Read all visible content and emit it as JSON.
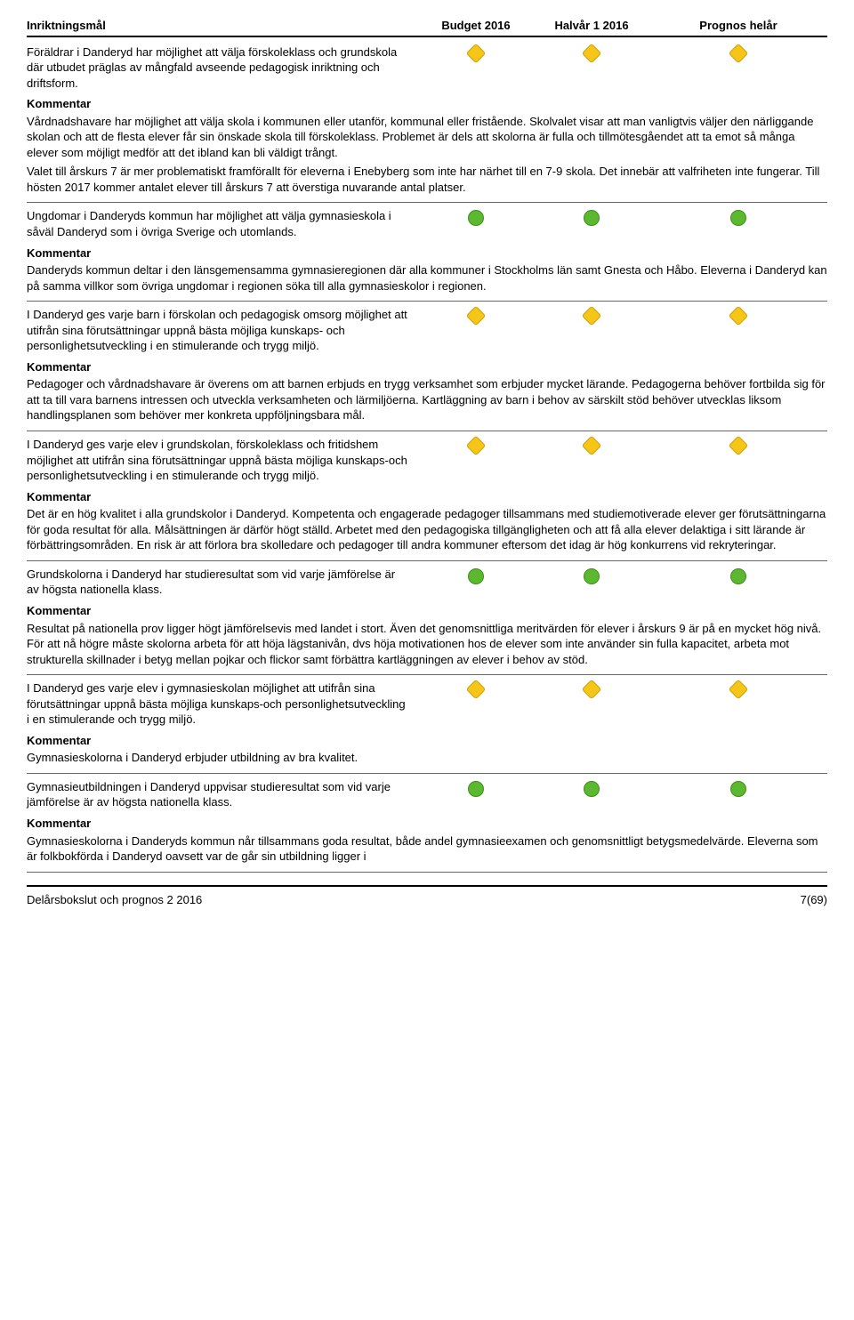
{
  "header": {
    "goal": "Inriktningsmål",
    "budget": "Budget 2016",
    "half": "Halvår 1 2016",
    "prognosis": "Prognos helår"
  },
  "status_colors": {
    "yellow": "#f5c518",
    "green": "#5cb82f"
  },
  "comment_label": "Kommentar",
  "sections": [
    {
      "goal": "Föräldrar i Danderyd har möjlighet att välja förskoleklass och grundskola där utbudet präglas av mångfald avseende pedagogisk inriktning och driftsform.",
      "status": "yellow",
      "comment": [
        "Vårdnadshavare har möjlighet att välja skola i kommunen eller utanför, kommunal eller fristående. Skolvalet visar att man vanligtvis väljer den närliggande skolan och att de flesta elever får sin önskade skola till förskoleklass. Problemet är dels att skolorna är fulla och tillmötesgåendet att ta emot så många elever som möjligt medför att det ibland kan bli väldigt trångt.",
        "Valet till årskurs 7 är mer problematiskt framförallt för eleverna i Enebyberg som inte har närhet till en 7-9 skola. Det innebär att valfriheten inte fungerar. Till hösten 2017 kommer antalet elever till årskurs 7 att överstiga nuvarande antal platser."
      ]
    },
    {
      "goal": "Ungdomar i Danderyds kommun har möjlighet att välja gymnasieskola i såväl Danderyd som i övriga Sverige och utomlands.",
      "status": "green",
      "comment": [
        "Danderyds kommun deltar i den länsgemensamma gymnasieregionen där alla kommuner i Stockholms län samt Gnesta och Håbo. Eleverna i Danderyd kan på samma villkor som övriga ungdomar i regionen söka till alla gymnasieskolor i regionen."
      ]
    },
    {
      "goal": "I Danderyd ges varje barn i förskolan och pedagogisk omsorg möjlighet att utifrån sina förutsättningar uppnå bästa möjliga kunskaps- och personlighetsutveckling i en stimulerande och trygg miljö.",
      "status": "yellow",
      "comment": [
        "Pedagoger och vårdnadshavare är överens om att barnen erbjuds en trygg verksamhet som erbjuder mycket lärande. Pedagogerna behöver fortbilda sig för att ta till vara barnens intressen och utveckla verksamheten och lärmiljöerna. Kartläggning av barn i behov av särskilt stöd behöver utvecklas liksom handlingsplanen som behöver mer konkreta uppföljningsbara mål."
      ]
    },
    {
      "goal": "I Danderyd ges varje elev i grundskolan, förskoleklass och fritidshem möjlighet att utifrån sina förutsättningar uppnå bästa möjliga kunskaps-och personlighetsutveckling i en stimulerande och trygg miljö.",
      "status": "yellow",
      "comment": [
        "Det är en hög kvalitet i alla grundskolor i Danderyd. Kompetenta och engagerade pedagoger tillsammans med studiemotiverade elever ger förutsättningarna för goda resultat för alla. Målsättningen är därför högt ställd. Arbetet med den pedagogiska tillgängligheten och att få alla elever delaktiga i sitt lärande är förbättringsområden. En risk är att förlora bra skolledare och pedagoger till andra kommuner eftersom det idag är hög konkurrens vid rekryteringar."
      ]
    },
    {
      "goal": "Grundskolorna i Danderyd har studieresultat som vid varje jämförelse är av högsta nationella klass.",
      "status": "green",
      "comment": [
        "Resultat på nationella prov ligger högt jämförelsevis med landet i stort. Även det genomsnittliga meritvärden för elever i årskurs 9 är på en mycket hög nivå. För att nå högre måste skolorna arbeta för att höja lägstanivån, dvs höja motivationen hos de elever som inte använder sin fulla kapacitet, arbeta mot strukturella skillnader i betyg mellan pojkar och flickor samt förbättra kartläggningen av elever i behov av stöd."
      ]
    },
    {
      "goal": "I Danderyd ges varje elev i gymnasieskolan möjlighet att utifrån sina förutsättningar uppnå bästa möjliga kunskaps-och personlighetsutveckling i en stimulerande och trygg miljö.",
      "status": "yellow",
      "comment": [
        "Gymnasieskolorna i Danderyd erbjuder utbildning av bra kvalitet."
      ]
    },
    {
      "goal": "Gymnasieutbildningen i Danderyd uppvisar studieresultat som vid varje jämförelse är av högsta nationella klass.",
      "status": "green",
      "comment": [
        "Gymnasieskolorna i Danderyds kommun når tillsammans goda resultat, både andel gymnasieexamen och genomsnittligt betygsmedelvärde. Eleverna som är folkbokförda i Danderyd oavsett var de går sin utbildning ligger i"
      ]
    }
  ],
  "footer": {
    "left": "Delårsbokslut och prognos 2 2016",
    "right": "7(69)"
  }
}
